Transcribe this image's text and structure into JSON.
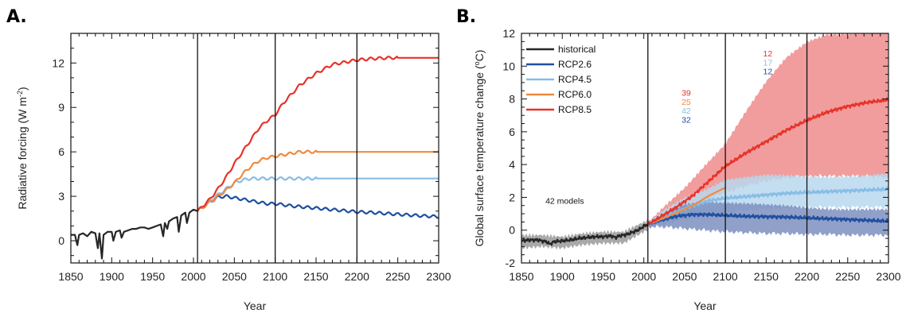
{
  "colors": {
    "historical": "#262626",
    "rcp26": "#1f4fa0",
    "rcp45": "#86bde6",
    "rcp60": "#f08a3c",
    "rcp85": "#e8322a",
    "hist_band": "#9a9a9a",
    "rcp26_band": "#7d8fbf",
    "rcp45_band": "#b8d8ef",
    "rcp85_band": "#f09292"
  },
  "chart_data": [
    {
      "type": "line",
      "panel_label": "A.",
      "title": "",
      "xlabel": "Year",
      "ylabel": "Radiative  forcing (W m",
      "ylabel_sup": "-2",
      "ylabel_tail": ")",
      "xlim": [
        1850,
        2300
      ],
      "ylim": [
        -1.5,
        14
      ],
      "x_ticks": [
        1850,
        1900,
        1950,
        2000,
        2050,
        2100,
        2150,
        2200,
        2250,
        2300
      ],
      "x_tick_labels": [
        "1850",
        "1900",
        "1950",
        "2000",
        "2050",
        "2100",
        "2150",
        "2200",
        "2250",
        "2300"
      ],
      "y_ticks": [
        0,
        3,
        6,
        9,
        12
      ],
      "y_tick_labels": [
        "0",
        "3",
        "6",
        "9",
        "12"
      ],
      "vlines": [
        2005,
        2100,
        2200
      ],
      "series": [
        {
          "key": "historical",
          "x": [
            1850,
            1855,
            1858,
            1860,
            1865,
            1870,
            1875,
            1880,
            1883,
            1885,
            1888,
            1890,
            1895,
            1900,
            1902,
            1905,
            1910,
            1912,
            1915,
            1920,
            1925,
            1930,
            1935,
            1940,
            1945,
            1950,
            1955,
            1960,
            1963,
            1965,
            1968,
            1970,
            1975,
            1980,
            1982,
            1985,
            1990,
            1992,
            1995,
            2000,
            2005
          ],
          "y": [
            0.4,
            0.4,
            -0.3,
            0.4,
            0.5,
            0.3,
            0.6,
            0.5,
            -0.5,
            0.5,
            -1.2,
            0.4,
            0.6,
            0.6,
            0.0,
            0.6,
            0.7,
            0.2,
            0.6,
            0.7,
            0.8,
            0.8,
            0.9,
            0.9,
            0.8,
            0.9,
            1.0,
            1.1,
            0.3,
            1.2,
            0.8,
            1.3,
            1.5,
            1.6,
            0.6,
            1.7,
            1.9,
            1.2,
            1.9,
            2.1,
            2.0
          ]
        },
        {
          "key": "rcp26",
          "x": [
            2005,
            2020,
            2030,
            2040,
            2050,
            2060,
            2070,
            2080,
            2090,
            2100,
            2120,
            2140,
            2160,
            2180,
            2200,
            2220,
            2240,
            2260,
            2280,
            2300
          ],
          "y": [
            2.0,
            2.6,
            2.95,
            3.0,
            2.9,
            2.8,
            2.7,
            2.6,
            2.5,
            2.5,
            2.35,
            2.25,
            2.15,
            2.05,
            1.95,
            1.9,
            1.82,
            1.75,
            1.68,
            1.62
          ]
        },
        {
          "key": "rcp45",
          "x": [
            2005,
            2020,
            2030,
            2040,
            2050,
            2060,
            2070,
            2080,
            2090,
            2100,
            2150,
            2200,
            2250,
            2300
          ],
          "y": [
            2.0,
            2.7,
            3.1,
            3.5,
            3.9,
            4.1,
            4.2,
            4.2,
            4.2,
            4.2,
            4.2,
            4.2,
            4.2,
            4.2
          ]
        },
        {
          "key": "rcp60",
          "x": [
            2005,
            2020,
            2030,
            2040,
            2050,
            2060,
            2070,
            2080,
            2090,
            2100,
            2110,
            2120,
            2130,
            2140,
            2150,
            2200,
            2250,
            2300
          ],
          "y": [
            2.0,
            2.6,
            3.0,
            3.4,
            3.9,
            4.5,
            5.0,
            5.4,
            5.6,
            5.7,
            5.8,
            5.9,
            6.0,
            6.0,
            6.0,
            6.0,
            6.0,
            6.0
          ]
        },
        {
          "key": "rcp85",
          "x": [
            2005,
            2020,
            2030,
            2040,
            2050,
            2060,
            2070,
            2080,
            2090,
            2100,
            2110,
            2120,
            2130,
            2140,
            2150,
            2160,
            2170,
            2180,
            2190,
            2200,
            2220,
            2240,
            2250,
            2300
          ],
          "y": [
            2.0,
            2.8,
            3.5,
            4.3,
            5.2,
            6.0,
            6.8,
            7.6,
            8.1,
            8.5,
            9.3,
            9.9,
            10.5,
            10.9,
            11.3,
            11.6,
            11.9,
            12.0,
            12.1,
            12.2,
            12.3,
            12.35,
            12.35,
            12.35
          ]
        }
      ]
    },
    {
      "type": "line",
      "panel_label": "B.",
      "title": "",
      "xlabel": "Year",
      "ylabel": "Global surface temperature change (",
      "ylabel_sup": "o",
      "ylabel_tail": "C)",
      "xlim": [
        1850,
        2300
      ],
      "ylim": [
        -2,
        12
      ],
      "x_ticks": [
        1850,
        1900,
        1950,
        2000,
        2050,
        2100,
        2150,
        2200,
        2250,
        2300
      ],
      "x_tick_labels": [
        "1850",
        "1900",
        "1950",
        "2000",
        "2050",
        "2100",
        "2150",
        "2200",
        "2250",
        "2300"
      ],
      "y_ticks": [
        -2,
        0,
        2,
        4,
        6,
        8,
        10,
        12
      ],
      "y_tick_labels": [
        "-2",
        "0",
        "2",
        "4",
        "6",
        "8",
        "10",
        "12"
      ],
      "vlines": [
        2005,
        2100,
        2200
      ],
      "legend": {
        "placement": "top-left",
        "entries": [
          {
            "key": "historical",
            "label": "historical"
          },
          {
            "key": "rcp26",
            "label": "RCP2.6"
          },
          {
            "key": "rcp45",
            "label": "RCP4.5"
          },
          {
            "key": "rcp60",
            "label": "RCP6.0"
          },
          {
            "key": "rcp85",
            "label": "RCP8.5"
          }
        ]
      },
      "annotations": [
        {
          "text": "42 models",
          "x": 1903,
          "y": 1.6,
          "color_key": "historical"
        },
        {
          "text": "39",
          "x": 2052,
          "y": 8.2,
          "color_key": "rcp85"
        },
        {
          "text": "25",
          "x": 2052,
          "y": 7.65,
          "color_key": "rcp60"
        },
        {
          "text": "42",
          "x": 2052,
          "y": 7.1,
          "color_key": "rcp45"
        },
        {
          "text": "32",
          "x": 2052,
          "y": 6.55,
          "color_key": "rcp26"
        },
        {
          "text": "12",
          "x": 2152,
          "y": 10.6,
          "color_key": "rcp85"
        },
        {
          "text": "17",
          "x": 2152,
          "y": 10.05,
          "color_key": "rcp45"
        },
        {
          "text": "12",
          "x": 2152,
          "y": 9.5,
          "color_key": "rcp26"
        }
      ],
      "bands": [
        {
          "key": "rcp85",
          "x": [
            2005,
            2025,
            2050,
            2075,
            2100,
            2125,
            2150,
            2175,
            2200,
            2225,
            2250,
            2275,
            2300
          ],
          "low": [
            0.2,
            0.6,
            1.2,
            1.8,
            2.3,
            2.7,
            3.0,
            3.2,
            3.3,
            3.3,
            3.3,
            3.3,
            3.2
          ],
          "high": [
            0.4,
            1.4,
            2.6,
            4.0,
            5.3,
            7.2,
            9.0,
            10.5,
            11.5,
            12.0,
            12.0,
            12.0,
            12.0
          ]
        },
        {
          "key": "rcp45",
          "x": [
            2005,
            2025,
            2050,
            2075,
            2100,
            2125,
            2150,
            2175,
            2200,
            2225,
            2250,
            2275,
            2300
          ],
          "low": [
            0.2,
            0.4,
            0.7,
            0.9,
            1.1,
            1.2,
            1.3,
            1.35,
            1.4,
            1.4,
            1.4,
            1.4,
            1.4
          ],
          "high": [
            0.4,
            1.2,
            2.0,
            2.5,
            3.1,
            3.2,
            3.3,
            3.3,
            3.3,
            3.3,
            3.3,
            3.3,
            3.4
          ]
        },
        {
          "key": "rcp26",
          "x": [
            2005,
            2025,
            2050,
            2075,
            2100,
            2125,
            2150,
            2175,
            2200,
            2225,
            2250,
            2275,
            2300
          ],
          "low": [
            0.2,
            0.2,
            0.1,
            0.0,
            -0.1,
            -0.15,
            -0.2,
            -0.2,
            -0.25,
            -0.25,
            -0.3,
            -0.3,
            -0.3
          ],
          "high": [
            0.4,
            1.0,
            1.6,
            1.8,
            1.7,
            1.6,
            1.5,
            1.45,
            1.4,
            1.35,
            1.3,
            1.25,
            1.2
          ]
        },
        {
          "key": "historical",
          "x": [
            1850,
            1875,
            1900,
            1925,
            1950,
            1975,
            2000,
            2005
          ],
          "low": [
            -1.1,
            -1.0,
            -1.1,
            -0.9,
            -0.8,
            -0.8,
            -0.1,
            0.0
          ],
          "high": [
            -0.3,
            -0.3,
            -0.4,
            -0.2,
            -0.1,
            -0.1,
            0.5,
            0.6
          ]
        }
      ],
      "series": [
        {
          "key": "historical",
          "x": [
            1850,
            1860,
            1870,
            1880,
            1885,
            1890,
            1900,
            1910,
            1920,
            1930,
            1940,
            1950,
            1960,
            1965,
            1970,
            1980,
            1990,
            1995,
            2000,
            2005
          ],
          "y": [
            -0.65,
            -0.6,
            -0.6,
            -0.7,
            -0.85,
            -0.7,
            -0.65,
            -0.6,
            -0.5,
            -0.45,
            -0.4,
            -0.4,
            -0.35,
            -0.45,
            -0.35,
            -0.25,
            -0.05,
            0.05,
            0.25,
            0.35
          ]
        },
        {
          "key": "rcp26",
          "x": [
            2005,
            2020,
            2040,
            2060,
            2080,
            2100,
            2125,
            2150,
            2175,
            2200,
            2225,
            2250,
            2275,
            2300
          ],
          "y": [
            0.35,
            0.6,
            0.85,
            0.95,
            0.95,
            0.9,
            0.85,
            0.82,
            0.8,
            0.75,
            0.7,
            0.65,
            0.6,
            0.55
          ]
        },
        {
          "key": "rcp45",
          "x": [
            2005,
            2020,
            2040,
            2060,
            2080,
            2100,
            2125,
            2150,
            2175,
            2200,
            2225,
            2250,
            2275,
            2300
          ],
          "y": [
            0.35,
            0.7,
            1.1,
            1.5,
            1.8,
            1.95,
            2.05,
            2.15,
            2.25,
            2.3,
            2.35,
            2.4,
            2.45,
            2.5
          ]
        },
        {
          "key": "rcp60",
          "x": [
            2005,
            2020,
            2040,
            2060,
            2080,
            2100
          ],
          "y": [
            0.35,
            0.65,
            1.05,
            1.5,
            2.1,
            2.6
          ]
        },
        {
          "key": "rcp85",
          "x": [
            2005,
            2020,
            2040,
            2060,
            2080,
            2100,
            2125,
            2150,
            2175,
            2200,
            2225,
            2250,
            2275,
            2300
          ],
          "y": [
            0.35,
            0.8,
            1.4,
            2.1,
            3.0,
            3.9,
            4.7,
            5.4,
            6.1,
            6.7,
            7.2,
            7.55,
            7.8,
            7.95
          ]
        }
      ]
    }
  ]
}
